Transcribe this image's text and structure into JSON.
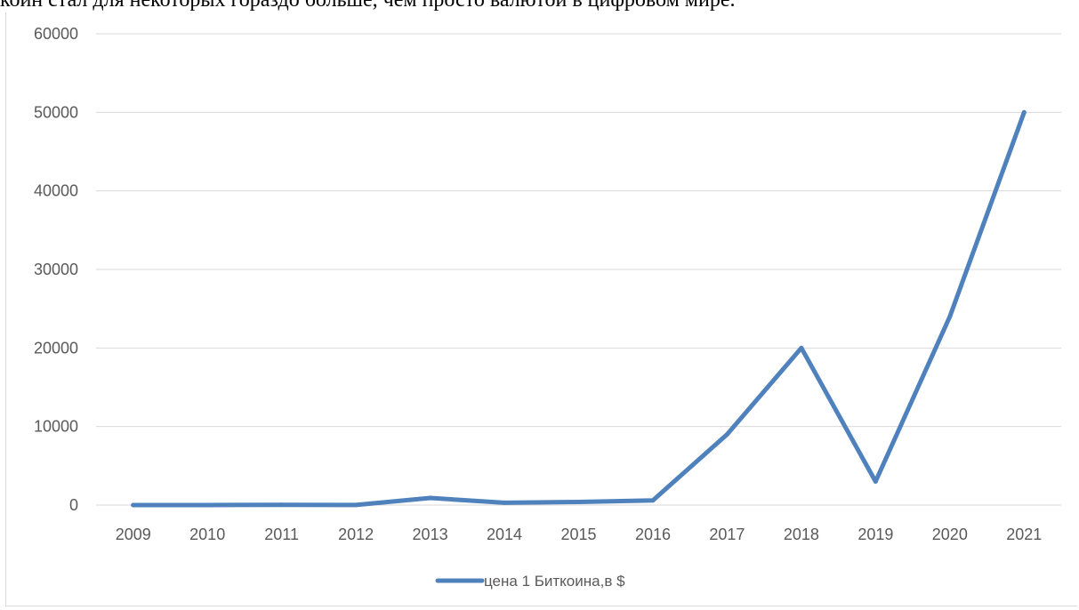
{
  "document": {
    "text_line": "коин стал для некоторых гораздо больше, чем просто валютой в цифровом мире."
  },
  "chart_data": {
    "type": "line",
    "title": "",
    "xlabel": "",
    "ylabel": "",
    "categories": [
      "2009",
      "2010",
      "2011",
      "2012",
      "2013",
      "2014",
      "2015",
      "2016",
      "2017",
      "2018",
      "2019",
      "2020",
      "2021"
    ],
    "series": [
      {
        "name": "цена 1 Биткоина,в $",
        "values": [
          0,
          0,
          30,
          13,
          900,
          300,
          400,
          600,
          9000,
          20000,
          3000,
          24000,
          50000
        ],
        "color": "#4f81bd"
      }
    ],
    "ylim": [
      0,
      60000
    ],
    "yticks": [
      "0",
      "10000",
      "20000",
      "30000",
      "40000",
      "50000",
      "60000"
    ],
    "grid": true,
    "legend_position": "bottom"
  }
}
